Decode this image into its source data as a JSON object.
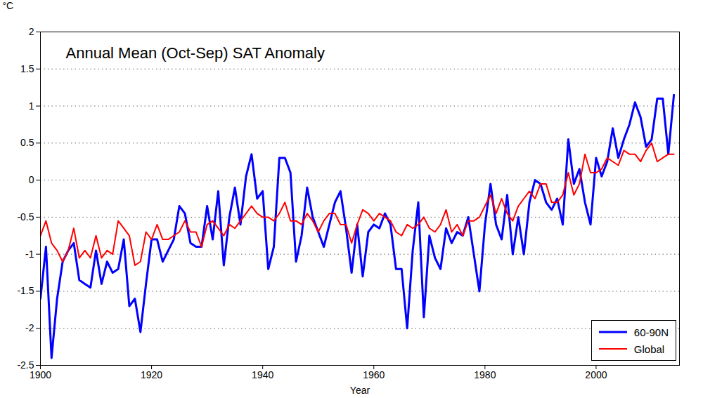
{
  "chart_data": {
    "type": "line",
    "title": "Annual Mean (Oct-Sep) SAT Anomaly",
    "x_label": "Year",
    "y_label": "°C",
    "x": [
      1900,
      1901,
      1902,
      1903,
      1904,
      1905,
      1906,
      1907,
      1908,
      1909,
      1910,
      1911,
      1912,
      1913,
      1914,
      1915,
      1916,
      1917,
      1918,
      1919,
      1920,
      1921,
      1922,
      1923,
      1924,
      1925,
      1926,
      1927,
      1928,
      1929,
      1930,
      1931,
      1932,
      1933,
      1934,
      1935,
      1936,
      1937,
      1938,
      1939,
      1940,
      1941,
      1942,
      1943,
      1944,
      1945,
      1946,
      1947,
      1948,
      1949,
      1950,
      1951,
      1952,
      1953,
      1954,
      1955,
      1956,
      1957,
      1958,
      1959,
      1960,
      1961,
      1962,
      1963,
      1964,
      1965,
      1966,
      1967,
      1968,
      1969,
      1970,
      1971,
      1972,
      1973,
      1974,
      1975,
      1976,
      1977,
      1978,
      1979,
      1980,
      1981,
      1982,
      1983,
      1984,
      1985,
      1986,
      1987,
      1988,
      1989,
      1990,
      1991,
      1992,
      1993,
      1994,
      1995,
      1996,
      1997,
      1998,
      1999,
      2000,
      2001,
      2002,
      2003,
      2004,
      2005,
      2006,
      2007,
      2008,
      2009,
      2010,
      2011,
      2012,
      2013,
      2014
    ],
    "series": [
      {
        "name": "60-90N",
        "color": "#0000ff",
        "values": [
          -1.6,
          -0.9,
          -2.4,
          -1.6,
          -1.1,
          -0.95,
          -0.85,
          -1.35,
          -1.4,
          -1.45,
          -0.95,
          -1.4,
          -1.1,
          -1.25,
          -1.2,
          -0.8,
          -1.7,
          -1.6,
          -2.05,
          -1.4,
          -0.8,
          -0.8,
          -1.1,
          -0.95,
          -0.8,
          -0.35,
          -0.45,
          -0.85,
          -0.9,
          -0.9,
          -0.35,
          -0.8,
          -0.15,
          -1.15,
          -0.5,
          -0.1,
          -0.6,
          0.05,
          0.35,
          -0.25,
          -0.15,
          -1.2,
          -0.9,
          0.3,
          0.3,
          0.1,
          -1.1,
          -0.75,
          -0.1,
          -0.5,
          -0.7,
          -0.9,
          -0.6,
          -0.3,
          -0.15,
          -0.65,
          -1.25,
          -0.6,
          -1.3,
          -0.7,
          -0.6,
          -0.65,
          -0.45,
          -0.6,
          -1.2,
          -1.2,
          -2.0,
          -0.95,
          -0.3,
          -1.85,
          -0.75,
          -1.05,
          -1.2,
          -0.65,
          -0.85,
          -0.7,
          -0.75,
          -0.5,
          -1.0,
          -1.5,
          -0.6,
          -0.05,
          -0.6,
          -0.8,
          -0.2,
          -1.0,
          -0.5,
          -1.0,
          -0.3,
          0.0,
          -0.05,
          -0.3,
          -0.4,
          -0.25,
          -0.6,
          0.55,
          -0.05,
          0.15,
          -0.3,
          -0.6,
          0.3,
          0.05,
          0.25,
          0.7,
          0.3,
          0.55,
          0.75,
          1.05,
          0.85,
          0.45,
          0.55,
          1.1,
          1.1,
          0.35,
          1.15
        ]
      },
      {
        "name": "Global",
        "color": "#ff0000",
        "values": [
          -0.75,
          -0.55,
          -0.85,
          -0.95,
          -1.1,
          -0.95,
          -0.65,
          -1.05,
          -0.95,
          -1.05,
          -0.75,
          -1.05,
          -0.95,
          -1.0,
          -0.55,
          -0.65,
          -0.75,
          -1.15,
          -1.1,
          -0.7,
          -0.8,
          -0.6,
          -0.8,
          -0.8,
          -0.75,
          -0.7,
          -0.55,
          -0.7,
          -0.7,
          -0.9,
          -0.6,
          -0.55,
          -0.65,
          -0.75,
          -0.6,
          -0.65,
          -0.55,
          -0.45,
          -0.35,
          -0.45,
          -0.5,
          -0.5,
          -0.55,
          -0.45,
          -0.3,
          -0.55,
          -0.55,
          -0.6,
          -0.45,
          -0.55,
          -0.7,
          -0.55,
          -0.45,
          -0.45,
          -0.6,
          -0.6,
          -0.85,
          -0.6,
          -0.4,
          -0.45,
          -0.55,
          -0.45,
          -0.5,
          -0.55,
          -0.7,
          -0.75,
          -0.6,
          -0.65,
          -0.6,
          -0.5,
          -0.65,
          -0.7,
          -0.6,
          -0.4,
          -0.7,
          -0.6,
          -0.75,
          -0.55,
          -0.55,
          -0.5,
          -0.35,
          -0.2,
          -0.45,
          -0.25,
          -0.45,
          -0.55,
          -0.35,
          -0.25,
          -0.15,
          -0.25,
          -0.05,
          -0.05,
          -0.3,
          -0.3,
          -0.2,
          0.1,
          -0.2,
          -0.05,
          0.35,
          0.1,
          0.1,
          0.15,
          0.3,
          0.25,
          0.2,
          0.4,
          0.35,
          0.35,
          0.25,
          0.4,
          0.5,
          0.25,
          0.3,
          0.35,
          0.35
        ]
      }
    ],
    "xlim": [
      1900,
      2015
    ],
    "xticks": [
      1900,
      1920,
      1940,
      1960,
      1980,
      2000
    ],
    "ylim": [
      -2.5,
      2
    ],
    "yticks": [
      -2.5,
      -2,
      -1.5,
      -1,
      -0.5,
      0,
      0.5,
      1,
      1.5,
      2
    ],
    "grid": true,
    "legend": "bottom-right"
  }
}
